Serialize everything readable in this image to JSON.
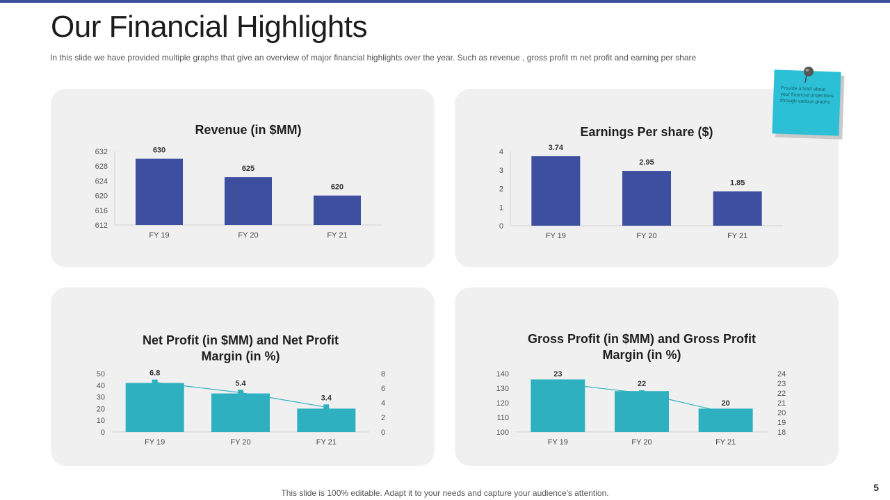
{
  "title": "Our Financial Highlights",
  "subtitle": "In this slide we have provided  multiple graphs that give  an overview  of major financial highlights over the year.  Such as revenue   , gross profit  m net profit and earning  per share",
  "sticky_note": "Provide a brief about your financial projections through various graphs",
  "footer": "This slide is 100% editable. Adapt it to your needs and capture your audience's attention.",
  "page_number": "5",
  "colors": {
    "navy": "#3f4f9f",
    "teal": "#2fb0c0",
    "card_bg": "#f0f0f0",
    "sticky": "#2cc0d6"
  },
  "chart_data": [
    {
      "type": "bar",
      "title": "Revenue (in $MM)",
      "categories": [
        "FY 19",
        "FY 20",
        "FY 21"
      ],
      "values": [
        630,
        625,
        620
      ],
      "labels": [
        "630",
        "625",
        "620"
      ],
      "ylim": [
        612,
        632
      ],
      "yticks": [
        612,
        616,
        620,
        624,
        628,
        632
      ],
      "color": "#3f4f9f"
    },
    {
      "type": "bar",
      "title": "Earnings Per share ($)",
      "categories": [
        "FY 19",
        "FY 20",
        "FY 21"
      ],
      "values": [
        3.74,
        2.95,
        1.85
      ],
      "labels": [
        "3.74",
        "2.95",
        "1.85"
      ],
      "ylim": [
        0,
        4
      ],
      "yticks": [
        0,
        1,
        2,
        3,
        4
      ],
      "color": "#3f4f9f"
    },
    {
      "type": "bar",
      "title": "Net Profit (in $MM) and Net Profit Margin (in %)",
      "title_lines": [
        "Net Profit (in $MM) and Net Profit",
        "Margin (in %)"
      ],
      "categories": [
        "FY 19",
        "FY 20",
        "FY 21"
      ],
      "values": [
        42,
        33,
        20
      ],
      "ylim": [
        0,
        50
      ],
      "yticks": [
        0,
        10,
        20,
        30,
        40,
        50
      ],
      "color": "#2fb0c0",
      "line": {
        "name": "Net Profit Margin (in %)",
        "values": [
          6.8,
          5.4,
          3.4
        ],
        "labels": [
          "6.8",
          "5.4",
          "3.4"
        ],
        "ylim": [
          0,
          8
        ],
        "yticks": [
          0,
          2,
          4,
          6,
          8
        ]
      }
    },
    {
      "type": "bar",
      "title": "Gross Profit (in $MM) and Gross Profit Margin (in %)",
      "title_lines": [
        "Gross Profit (in $MM) and Gross Profit",
        "Margin (in %)"
      ],
      "categories": [
        "FY 19",
        "FY 20",
        "FY 21"
      ],
      "values": [
        136,
        128,
        116
      ],
      "ylim": [
        100,
        140
      ],
      "yticks": [
        100,
        110,
        120,
        130,
        140
      ],
      "color": "#2fb0c0",
      "line": {
        "name": "Gross Profit Margin (in %)",
        "values": [
          23,
          22,
          20
        ],
        "labels": [
          "23",
          "22",
          "20"
        ],
        "ylim": [
          18,
          24
        ],
        "yticks": [
          18,
          19,
          20,
          21,
          22,
          23,
          24
        ]
      }
    }
  ]
}
